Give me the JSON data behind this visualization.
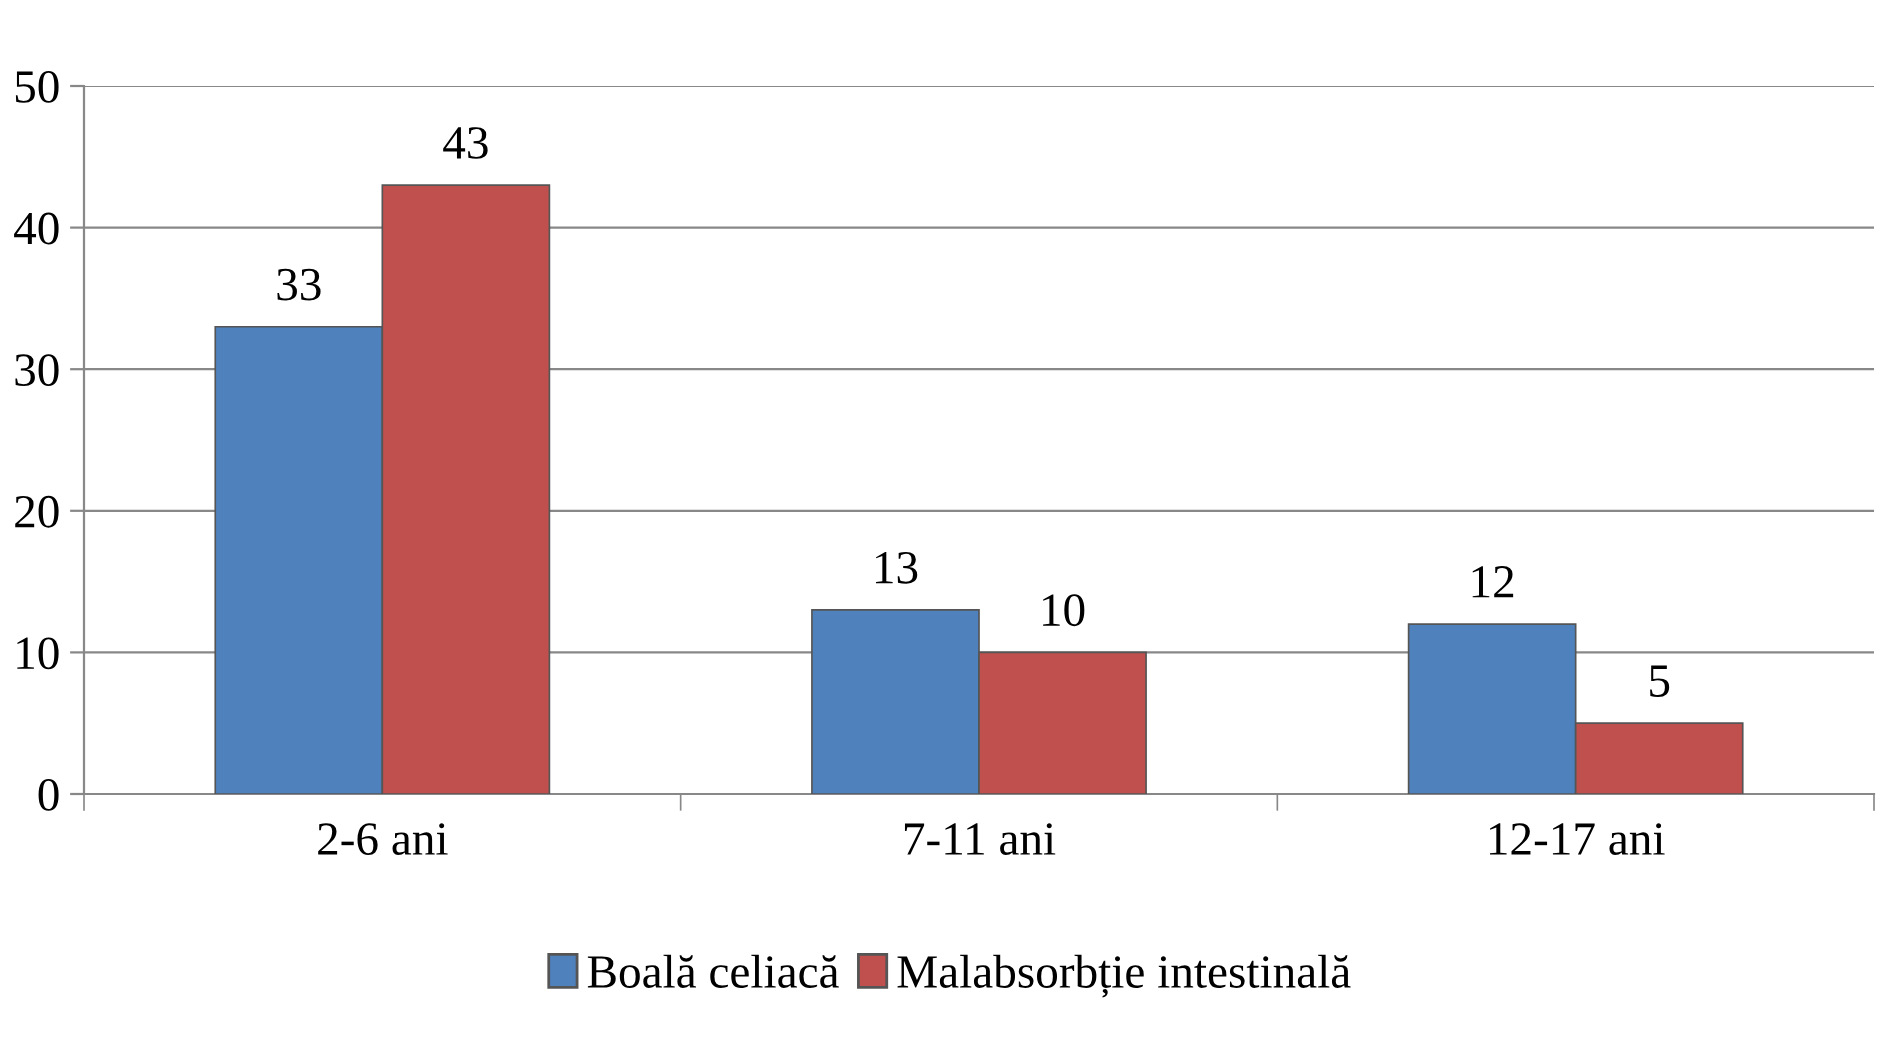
{
  "chart_data": {
    "type": "bar",
    "categories": [
      "2-6 ani",
      "7-11 ani",
      "12-17 ani"
    ],
    "series": [
      {
        "name": "Boală celiacă",
        "color": "#4f81bd",
        "values": [
          33,
          13,
          12
        ]
      },
      {
        "name": "Malabsorbție intestinală",
        "color": "#c0504d",
        "values": [
          43,
          10,
          5
        ]
      }
    ],
    "ylim": [
      0,
      50
    ],
    "yticks": [
      0,
      10,
      20,
      30,
      40,
      50
    ],
    "grid": "y",
    "legend": "bottom",
    "data_labels": true
  }
}
